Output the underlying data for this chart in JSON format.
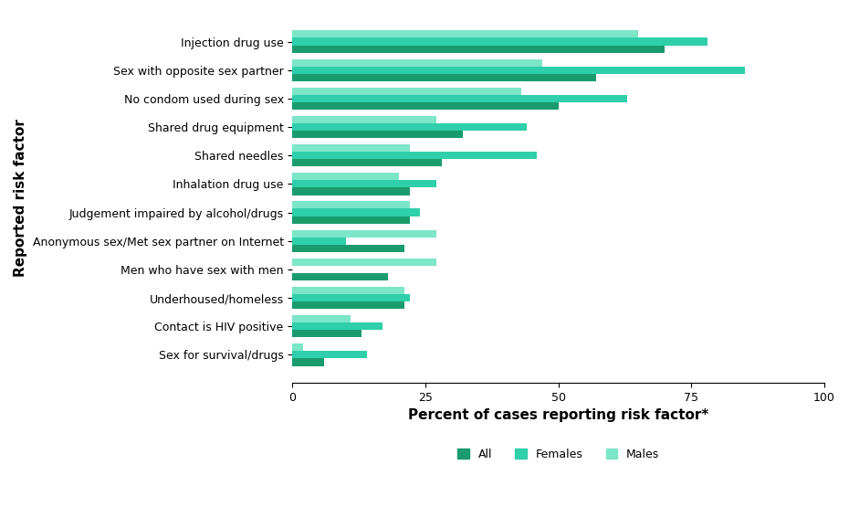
{
  "categories": [
    "Injection drug use",
    "Sex with opposite sex partner",
    "No condom used during sex",
    "Shared drug equipment",
    "Shared needles",
    "Inhalation drug use",
    "Judgement impaired by alcohol/drugs",
    "Anonymous sex/Met sex partner on Internet",
    "Men who have sex with men",
    "Underhoused/homeless",
    "Contact is HIV positive",
    "Sex for survival/drugs"
  ],
  "all_values": [
    70,
    57,
    50,
    32,
    28,
    22,
    22,
    21,
    18,
    21,
    13,
    6
  ],
  "females_values": [
    78,
    85,
    63,
    44,
    46,
    27,
    24,
    10,
    0,
    22,
    17,
    14
  ],
  "males_values": [
    65,
    47,
    43,
    27,
    22,
    20,
    22,
    27,
    27,
    21,
    11,
    2
  ],
  "color_all": "#1a9b6e",
  "color_females": "#2ecfaa",
  "color_males": "#7de5c8",
  "ylabel": "Reported risk factor",
  "xlabel": "Percent of cases reporting risk factor*",
  "xlim": [
    0,
    100
  ],
  "xticks": [
    0,
    25,
    50,
    75,
    100
  ],
  "legend_labels": [
    "All",
    "Females",
    "Males"
  ],
  "bar_height": 0.26,
  "xlabel_fontsize": 11,
  "ylabel_fontsize": 11,
  "tick_fontsize": 9,
  "legend_fontsize": 9
}
